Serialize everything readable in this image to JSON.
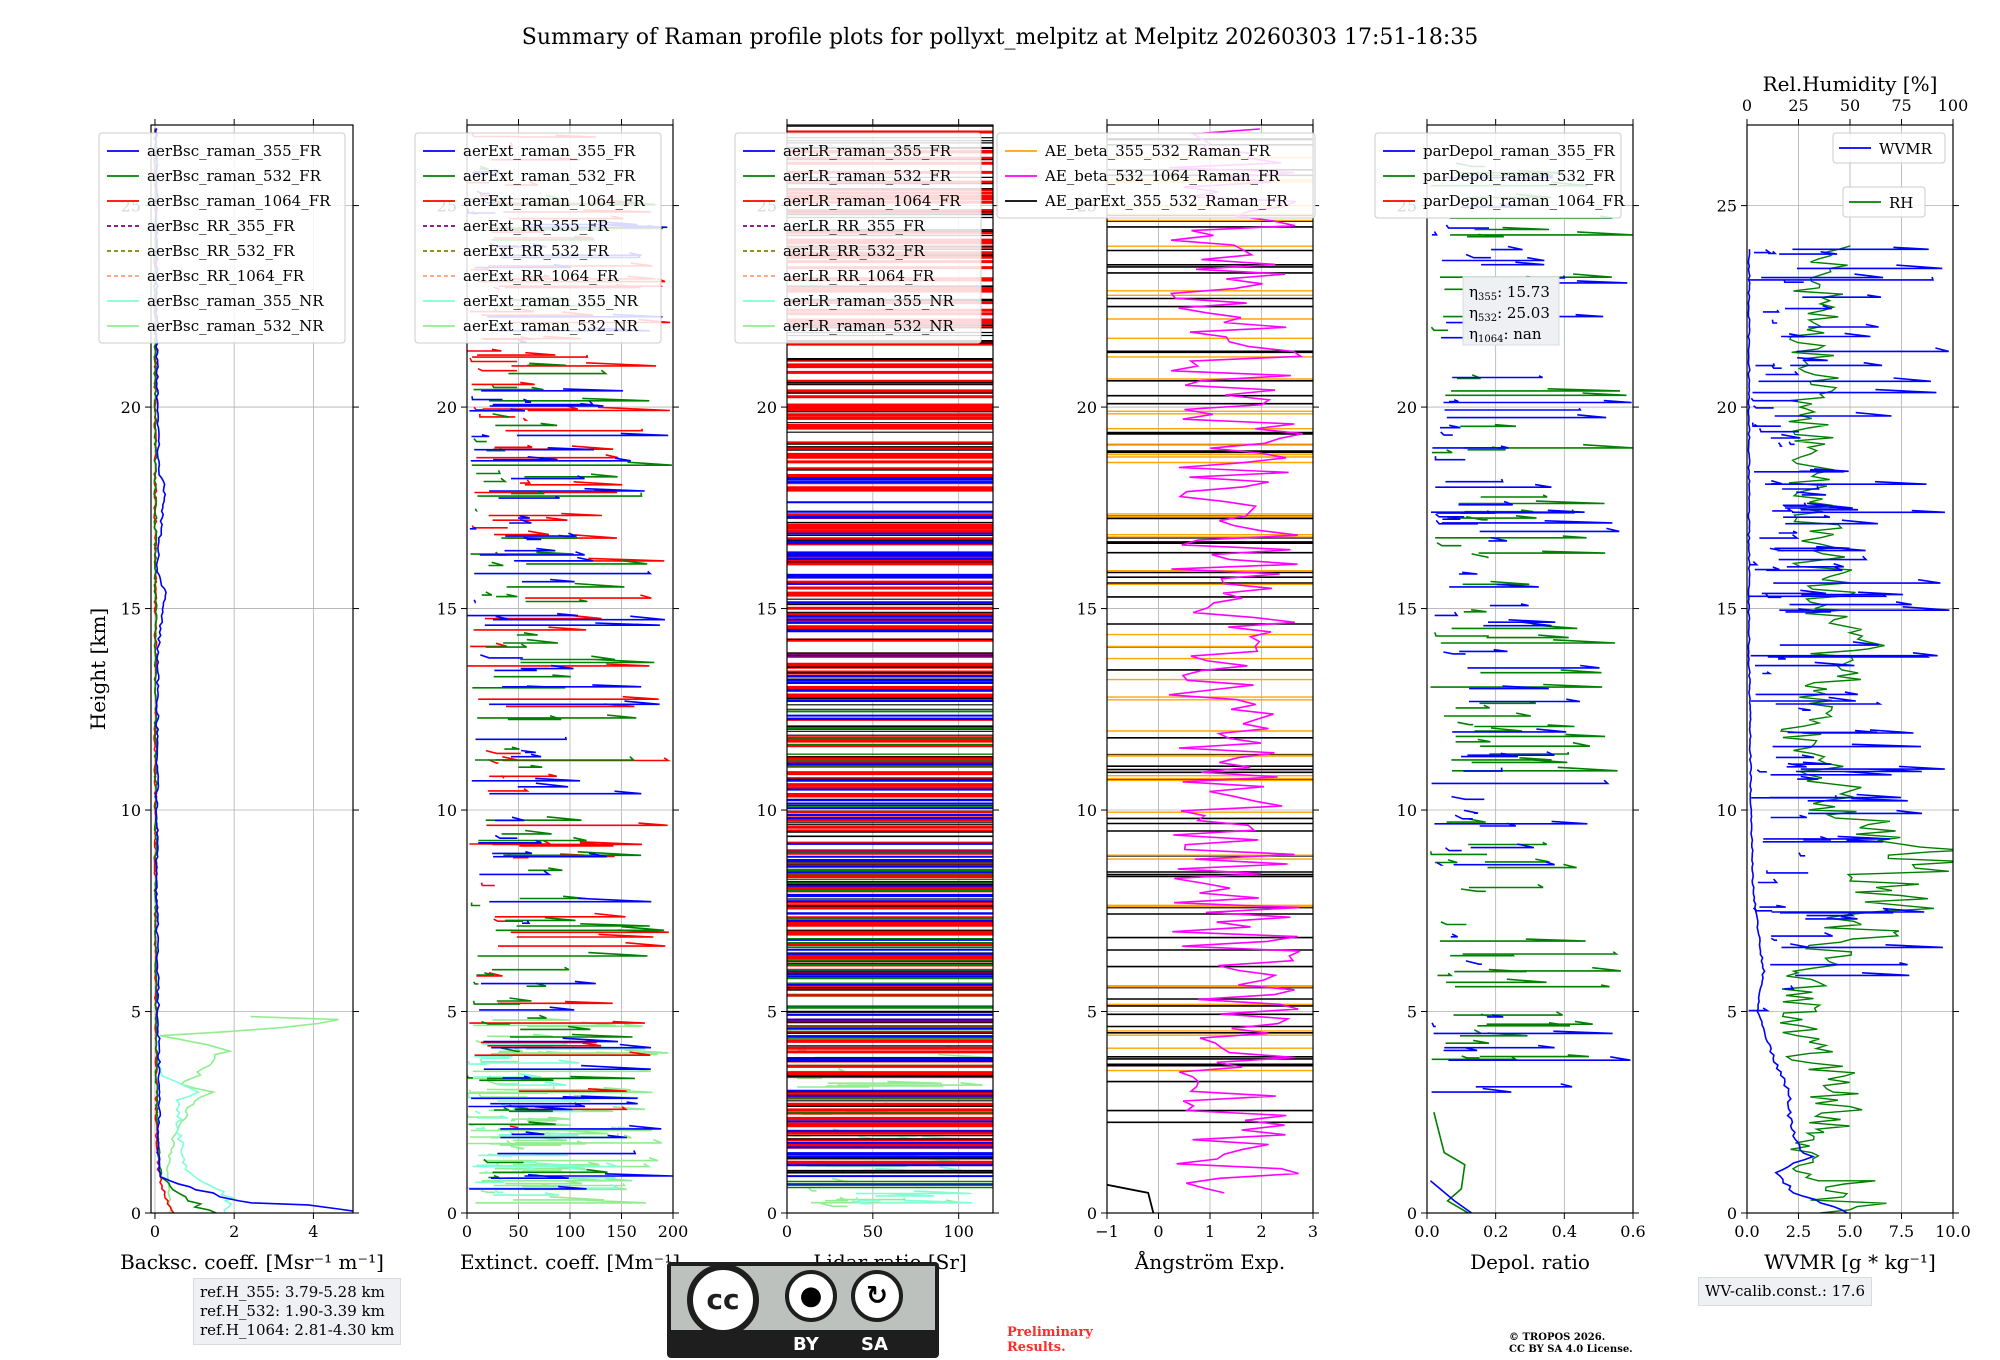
{
  "title": "Summary of Raman profile plots for pollyxt_melpitz at Melpitz 20260303 17:51-18:35",
  "colors": {
    "blue": "#0000ff",
    "green": "#008000",
    "red": "#ff0000",
    "purple": "#800080",
    "olive": "#808000",
    "salmon": "#ffa07a",
    "cyan": "#7fffd4",
    "lightgreen": "#90ee90",
    "orange": "#ffa500",
    "magenta": "#ff00ff",
    "black": "#000000"
  },
  "chart_data": [
    {
      "type": "line",
      "id": "backscatter",
      "xlabel": "Backsc. coeff. [Msr⁻¹ m⁻¹]",
      "ylabel": "Height [km]",
      "xlim": [
        -0.1,
        5
      ],
      "ylim": [
        0,
        27
      ],
      "xticks": [
        0,
        2,
        4
      ],
      "yticks": [
        0,
        5,
        10,
        15,
        20,
        25
      ],
      "grid": true,
      "legend": "top-left",
      "series": [
        {
          "name": "aerBsc_raman_355_FR",
          "color": "blue",
          "profile": [
            [
              0,
              4.9
            ],
            [
              0.2,
              3.5
            ],
            [
              0.3,
              2.0
            ],
            [
              0.5,
              1.4
            ],
            [
              0.8,
              0.4
            ],
            [
              0.9,
              0.15
            ],
            [
              1.5,
              0.08
            ],
            [
              3,
              0.12
            ],
            [
              5,
              0.08
            ],
            [
              8,
              0.05
            ],
            [
              12,
              0.06
            ],
            [
              14,
              0.08
            ],
            [
              15.4,
              0.25
            ],
            [
              16,
              0.05
            ],
            [
              18,
              0.25
            ],
            [
              18.4,
              0.1
            ],
            [
              20,
              0.06
            ],
            [
              24,
              0.04
            ],
            [
              27,
              0.03
            ]
          ]
        },
        {
          "name": "aerBsc_raman_532_FR",
          "color": "green",
          "profile": [
            [
              0,
              1.4
            ],
            [
              0.3,
              0.9
            ],
            [
              0.5,
              0.6
            ],
            [
              0.9,
              0.15
            ],
            [
              2,
              0.05
            ],
            [
              5,
              0.03
            ],
            [
              10,
              0.02
            ],
            [
              20,
              0.01
            ],
            [
              27,
              0.01
            ]
          ]
        },
        {
          "name": "aerBsc_raman_1064_FR",
          "color": "red",
          "profile": [
            [
              0,
              0.45
            ],
            [
              0.3,
              0.3
            ],
            [
              0.6,
              0.2
            ],
            [
              1,
              0.1
            ],
            [
              2,
              0.04
            ],
            [
              5,
              0.02
            ],
            [
              12,
              0.01
            ],
            [
              27,
              0.01
            ]
          ]
        },
        {
          "name": "aerBsc_RR_355_FR",
          "color": "purple",
          "dash": true,
          "profile": []
        },
        {
          "name": "aerBsc_RR_532_FR",
          "color": "olive",
          "dash": true,
          "profile": []
        },
        {
          "name": "aerBsc_RR_1064_FR",
          "color": "salmon",
          "dash": true,
          "profile": []
        },
        {
          "name": "aerBsc_raman_355_NR",
          "color": "cyan",
          "profile": [
            [
              0,
              1.8
            ],
            [
              0.3,
              1.9
            ],
            [
              0.6,
              1.5
            ],
            [
              1,
              0.8
            ],
            [
              2,
              0.6
            ],
            [
              2.8,
              0.6
            ],
            [
              3,
              1.0
            ],
            [
              3.4,
              0.2
            ],
            [
              4,
              0.05
            ]
          ]
        },
        {
          "name": "aerBsc_raman_532_NR",
          "color": "lightgreen",
          "profile": [
            [
              0,
              0.4
            ],
            [
              1,
              0.3
            ],
            [
              2,
              0.5
            ],
            [
              2.7,
              0.9
            ],
            [
              3.0,
              1.5
            ],
            [
              3.2,
              0.6
            ],
            [
              3.5,
              1.2
            ],
            [
              4.1,
              1.8
            ],
            [
              4.4,
              0.1
            ],
            [
              4.6,
              3.5
            ],
            [
              4.8,
              4.9
            ],
            [
              4.95,
              0.1
            ]
          ]
        }
      ]
    },
    {
      "type": "line",
      "id": "extinction",
      "xlabel": "Extinct. coeff. [Mm⁻¹]",
      "xlim": [
        0,
        200
      ],
      "ylim": [
        0,
        27
      ],
      "xticks": [
        0,
        50,
        100,
        150,
        200
      ],
      "yticks": [
        0,
        5,
        10,
        15,
        20,
        25
      ],
      "grid": true,
      "legend": "top-left",
      "series": [
        {
          "name": "aerExt_raman_355_FR",
          "color": "blue"
        },
        {
          "name": "aerExt_raman_532_FR",
          "color": "green"
        },
        {
          "name": "aerExt_raman_1064_FR",
          "color": "red"
        },
        {
          "name": "aerExt_RR_355_FR",
          "color": "purple",
          "dash": true
        },
        {
          "name": "aerExt_RR_532_FR",
          "color": "olive",
          "dash": true
        },
        {
          "name": "aerExt_RR_1064_FR",
          "color": "salmon",
          "dash": true
        },
        {
          "name": "aerExt_raman_355_NR",
          "color": "cyan"
        },
        {
          "name": "aerExt_raman_532_NR",
          "color": "lightgreen"
        }
      ]
    },
    {
      "type": "line",
      "id": "lidar_ratio",
      "xlabel": "Lidar ratio [Sr]",
      "xlim": [
        0,
        120
      ],
      "ylim": [
        0,
        27
      ],
      "xticks": [
        0,
        50,
        100
      ],
      "yticks": [
        0,
        5,
        10,
        15,
        20,
        25
      ],
      "grid": true,
      "legend": "top-left",
      "series": [
        {
          "name": "aerLR_raman_355_FR",
          "color": "blue"
        },
        {
          "name": "aerLR_raman_532_FR",
          "color": "green"
        },
        {
          "name": "aerLR_raman_1064_FR",
          "color": "red"
        },
        {
          "name": "aerLR_RR_355_FR",
          "color": "purple",
          "dash": true
        },
        {
          "name": "aerLR_RR_532_FR",
          "color": "olive",
          "dash": true
        },
        {
          "name": "aerLR_RR_1064_FR",
          "color": "salmon",
          "dash": true
        },
        {
          "name": "aerLR_raman_355_NR",
          "color": "cyan"
        },
        {
          "name": "aerLR_raman_532_NR",
          "color": "lightgreen"
        }
      ]
    },
    {
      "type": "line",
      "id": "angstrom",
      "xlabel": "Ångström Exp.",
      "xlim": [
        -1,
        3
      ],
      "ylim": [
        0,
        27
      ],
      "xticks": [
        -1,
        0,
        1,
        2,
        3
      ],
      "yticks": [
        0,
        5,
        10,
        15,
        20,
        25
      ],
      "grid": true,
      "legend": "top-left",
      "series": [
        {
          "name": "AE_beta_355_532_Raman_FR",
          "color": "orange"
        },
        {
          "name": "AE_beta_532_1064_Raman_FR",
          "color": "magenta"
        },
        {
          "name": "AE_parExt_355_532_Raman_FR",
          "color": "black"
        }
      ]
    },
    {
      "type": "line",
      "id": "depolarization",
      "xlabel": "Depol. ratio",
      "xlim": [
        0,
        0.6
      ],
      "ylim": [
        0,
        27
      ],
      "xticks": [
        0.0,
        0.2,
        0.4,
        0.6
      ],
      "xticklabels": [
        "0.0",
        "0.2",
        "0.4",
        "0.6"
      ],
      "yticks": [
        0,
        5,
        10,
        15,
        20,
        25
      ],
      "grid": true,
      "legend": "top-left",
      "series": [
        {
          "name": "parDepol_raman_355_FR",
          "color": "blue"
        },
        {
          "name": "parDepol_raman_532_FR",
          "color": "green"
        },
        {
          "name": "parDepol_raman_1064_FR",
          "color": "red"
        }
      ],
      "annotations": [
        {
          "label": "η",
          "sub": "355",
          "value": ": 15.73"
        },
        {
          "label": "η",
          "sub": "532",
          "value": ": 25.03"
        },
        {
          "label": "η",
          "sub": "1064",
          "value": ": nan"
        }
      ]
    },
    {
      "type": "line",
      "id": "water_vapor",
      "xlabel": "WVMR [g * kg⁻¹]",
      "xlim": [
        0,
        10
      ],
      "ylim": [
        0,
        27
      ],
      "xticks": [
        0,
        2.5,
        5,
        7.5,
        10
      ],
      "xticklabels": [
        "0.0",
        "2.5",
        "5.0",
        "7.5",
        "10.0"
      ],
      "top_xlabel": "Rel.Humidity [%]",
      "top_xlim": [
        0,
        100
      ],
      "top_xticks": [
        0,
        25,
        50,
        75,
        100
      ],
      "yticks": [
        0,
        5,
        10,
        15,
        20,
        25
      ],
      "grid": true,
      "series": [
        {
          "name": "WVMR",
          "color": "blue",
          "profile": [
            [
              0,
              5.0
            ],
            [
              0.5,
              2.2
            ],
            [
              1,
              1.5
            ],
            [
              1.4,
              3.0
            ],
            [
              2,
              2.2
            ],
            [
              3,
              2.0
            ],
            [
              4,
              1.2
            ],
            [
              5,
              0.5
            ],
            [
              6,
              0.8
            ],
            [
              8,
              0.3
            ],
            [
              10,
              0.2
            ],
            [
              14,
              0.1
            ],
            [
              20,
              0.1
            ],
            [
              24,
              0.1
            ]
          ]
        },
        {
          "name": "RH",
          "color": "green",
          "profile": [
            [
              0,
              50
            ],
            [
              0.8,
              48
            ],
            [
              1.1,
              20
            ],
            [
              1.5,
              30
            ],
            [
              2,
              35
            ],
            [
              3,
              45
            ],
            [
              4,
              30
            ],
            [
              5,
              25
            ],
            [
              6,
              30
            ],
            [
              7,
              60
            ],
            [
              8,
              70
            ],
            [
              9,
              80
            ],
            [
              10,
              50
            ],
            [
              11,
              35
            ],
            [
              12,
              25
            ],
            [
              13,
              40
            ],
            [
              14,
              50
            ],
            [
              15,
              40
            ],
            [
              20,
              30
            ],
            [
              24,
              40
            ]
          ]
        }
      ]
    }
  ],
  "ref_heights": [
    "ref.H_355: 3.79-5.28 km",
    "ref.H_532: 1.90-3.39 km",
    "ref.H_1064: 2.81-4.30 km"
  ],
  "wv_calib": "WV-calib.const.: 17.6",
  "license": {
    "cc": "cc",
    "by": "BY",
    "sa": "SA"
  },
  "preliminary": [
    "Preliminary",
    "Results."
  ],
  "copyright": [
    "© TROPOS 2026.",
    "CC BY SA 4.0 License."
  ]
}
